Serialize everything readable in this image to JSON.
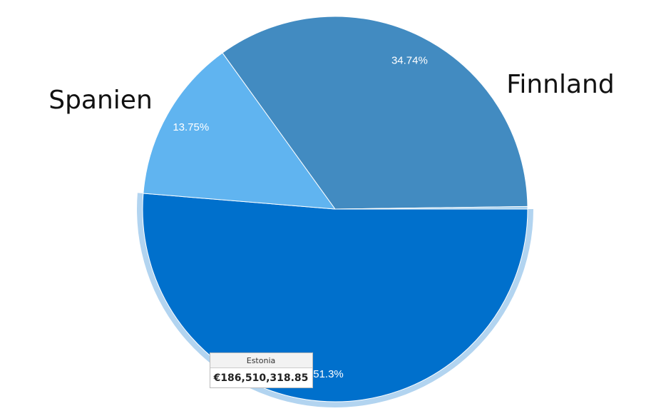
{
  "chart_data": {
    "type": "pie",
    "categories": [
      "Estonia",
      "Spanien",
      "Finnland",
      null
    ],
    "values": [
      51.3,
      13.75,
      34.74,
      0.21
    ],
    "value_labels": [
      "51.3%",
      "13.75%",
      "34.74%",
      null
    ],
    "colors": [
      "#0070cc",
      "#60b4f0",
      "#428bc1",
      "#9ccbed"
    ],
    "highlighted": 0,
    "tooltip": {
      "text": "€186,510,318.85"
    }
  }
}
